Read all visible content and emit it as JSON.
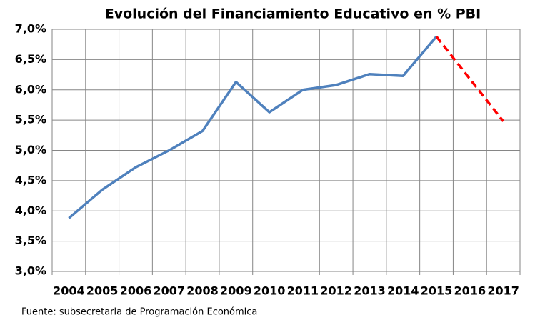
{
  "chart_data": {
    "type": "line",
    "title": "Evolución del Financiamiento Educativo en % PBI",
    "source": "Fuente: subsecretaria de Programación Económica",
    "categories": [
      "2004",
      "2005",
      "2006",
      "2007",
      "2008",
      "2009",
      "2010",
      "2011",
      "2012",
      "2013",
      "2014",
      "2015",
      "2016",
      "2017"
    ],
    "series": [
      {
        "color": "#4f81bd",
        "dashed": false,
        "values": [
          3.88,
          4.35,
          4.72,
          5.0,
          5.32,
          6.13,
          5.63,
          6.0,
          6.08,
          6.26,
          6.23,
          6.88,
          null,
          null
        ]
      },
      {
        "color": "#ff0000",
        "dashed": true,
        "values": [
          null,
          null,
          null,
          null,
          null,
          null,
          null,
          null,
          null,
          null,
          null,
          6.88,
          6.18,
          5.48
        ]
      }
    ],
    "ylim": [
      3.0,
      7.0
    ],
    "yticks": [
      {
        "value": 3.0,
        "label": "3,0%"
      },
      {
        "value": 3.5,
        "label": "3,5%"
      },
      {
        "value": 4.0,
        "label": "4,0%"
      },
      {
        "value": 4.5,
        "label": "4,5%"
      },
      {
        "value": 5.0,
        "label": "5,0%"
      },
      {
        "value": 5.5,
        "label": "5,5%"
      },
      {
        "value": 6.0,
        "label": "6,0%"
      },
      {
        "value": 6.5,
        "label": "6,5%"
      },
      {
        "value": 7.0,
        "label": "7,0%"
      }
    ],
    "grid": true
  }
}
